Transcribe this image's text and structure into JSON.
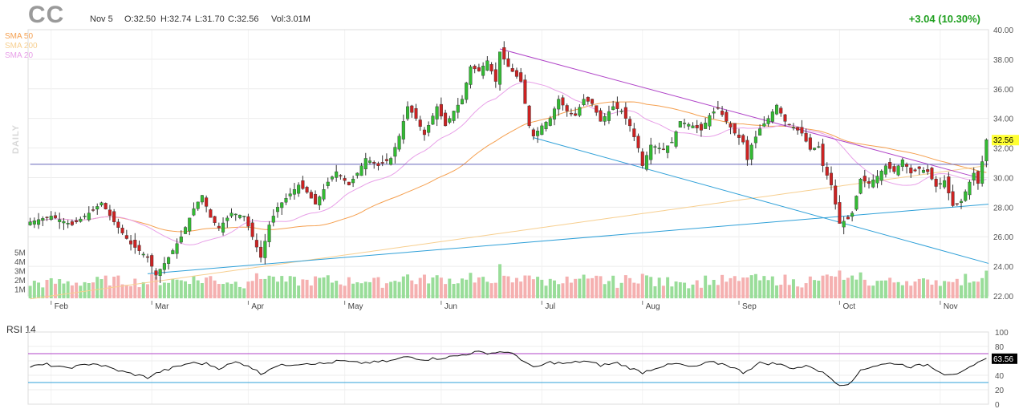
{
  "header": {
    "ticker": "CC",
    "date": "Nov 5",
    "open": "O:32.50",
    "high": "H:32.74",
    "low": "L:31.70",
    "close": "C:32.56",
    "volume": "Vol:3.01M",
    "change": "+3.04 (10.30%)",
    "side_label": "DAILY"
  },
  "legend": [
    {
      "name": "SMA 50",
      "color": "#f5a050"
    },
    {
      "name": "SMA 200",
      "color": "#f7cf90"
    },
    {
      "name": "SMA 20",
      "color": "#e8a0e8"
    }
  ],
  "colors": {
    "up": "#33bb33",
    "down": "#cc2222",
    "vol_up": "#99dd99",
    "vol_down": "#f5b0b0",
    "trend_purple": "#b044c8",
    "trend_blue": "#2fa0d8",
    "support": "#6666bb",
    "rsi_line": "#111111",
    "rsi_70": "#b044c8",
    "rsi_30": "#2fa0d8",
    "last_price_bg": "#ffff33"
  },
  "chart_data": [
    {
      "type": "candlestick",
      "title": "CC",
      "x_labels": [
        "Feb",
        "Mar",
        "Apr",
        "May",
        "Jun",
        "Jul",
        "Aug",
        "Sep",
        "Oct",
        "Nov"
      ],
      "y_ticks": [
        "40.00",
        "38.00",
        "36.00",
        "34.00",
        "32.00",
        "30.00",
        "28.00",
        "26.00",
        "24.00",
        "22.00"
      ],
      "ylim": [
        22,
        40
      ],
      "volume_ticks": [
        "5M",
        "4M",
        "3M",
        "2M",
        "1M"
      ],
      "volume_max": 5.5,
      "last_price": "32.56",
      "anchors": [
        [
          0,
          27.0
        ],
        [
          5,
          27.4
        ],
        [
          10,
          26.8
        ],
        [
          15,
          27.8
        ],
        [
          17,
          28.3
        ],
        [
          20,
          27.0
        ],
        [
          24,
          25.5
        ],
        [
          28,
          24.6
        ],
        [
          30,
          23.4
        ],
        [
          33,
          24.6
        ],
        [
          36,
          26.0
        ],
        [
          39,
          27.9
        ],
        [
          41,
          28.8
        ],
        [
          43,
          27.3
        ],
        [
          45,
          26.6
        ],
        [
          48,
          27.6
        ],
        [
          51,
          27.4
        ],
        [
          53,
          26.0
        ],
        [
          55,
          24.6
        ],
        [
          57,
          26.8
        ],
        [
          59,
          28.0
        ],
        [
          62,
          28.9
        ],
        [
          64,
          29.5
        ],
        [
          66,
          29.0
        ],
        [
          68,
          28.2
        ],
        [
          71,
          29.7
        ],
        [
          73,
          30.4
        ],
        [
          76,
          29.5
        ],
        [
          78,
          30.3
        ],
        [
          80,
          31.3
        ],
        [
          83,
          30.8
        ],
        [
          86,
          31.3
        ],
        [
          88,
          32.8
        ],
        [
          90,
          34.8
        ],
        [
          92,
          34.0
        ],
        [
          94,
          32.9
        ],
        [
          97,
          34.8
        ],
        [
          99,
          33.5
        ],
        [
          101,
          34.5
        ],
        [
          103,
          35.3
        ],
        [
          105,
          37.5
        ],
        [
          107,
          37.2
        ],
        [
          109,
          37.9
        ],
        [
          111,
          36.5
        ],
        [
          112,
          38.5
        ],
        [
          114,
          37.5
        ],
        [
          117,
          36.5
        ],
        [
          119,
          33.5
        ],
        [
          120,
          32.8
        ],
        [
          122,
          33.5
        ],
        [
          124,
          34.0
        ],
        [
          126,
          35.3
        ],
        [
          128,
          34.5
        ],
        [
          130,
          34.2
        ],
        [
          132,
          35.3
        ],
        [
          134,
          35.0
        ],
        [
          136,
          33.8
        ],
        [
          139,
          34.8
        ],
        [
          141,
          34.5
        ],
        [
          143,
          33.5
        ],
        [
          145,
          32.0
        ],
        [
          146,
          30.8
        ],
        [
          148,
          32.2
        ],
        [
          151,
          31.9
        ],
        [
          153,
          32.4
        ],
        [
          155,
          33.8
        ],
        [
          158,
          33.5
        ],
        [
          160,
          33.2
        ],
        [
          162,
          34.2
        ],
        [
          164,
          34.7
        ],
        [
          166,
          33.8
        ],
        [
          168,
          33.0
        ],
        [
          170,
          32.4
        ],
        [
          171,
          31.2
        ],
        [
          172,
          32.2
        ],
        [
          174,
          33.3
        ],
        [
          176,
          34.0
        ],
        [
          178,
          34.9
        ],
        [
          180,
          33.8
        ],
        [
          182,
          33.4
        ],
        [
          184,
          33.0
        ],
        [
          186,
          31.9
        ],
        [
          188,
          32.1
        ],
        [
          189,
          30.8
        ],
        [
          191,
          29.5
        ],
        [
          193,
          26.9
        ],
        [
          195,
          27.2
        ],
        [
          196,
          27.6
        ],
        [
          198,
          29.9
        ],
        [
          200,
          29.6
        ],
        [
          202,
          30.1
        ],
        [
          204,
          30.8
        ],
        [
          206,
          30.4
        ],
        [
          208,
          31.2
        ],
        [
          210,
          30.3
        ],
        [
          212,
          30.6
        ],
        [
          214,
          30.4
        ],
        [
          216,
          29.4
        ],
        [
          218,
          29.8
        ],
        [
          220,
          28.1
        ],
        [
          222,
          28.4
        ],
        [
          224,
          29.7
        ],
        [
          225,
          30.3
        ],
        [
          226,
          29.6
        ],
        [
          228,
          32.56
        ]
      ],
      "trendlines": [
        {
          "name": "upper-resistance",
          "from": [
            112,
            38.7
          ],
          "to": [
            226,
            30.0
          ]
        },
        {
          "name": "lower-channel",
          "from": [
            120,
            32.7
          ],
          "to": [
            228,
            24.2
          ]
        },
        {
          "name": "rising-support",
          "from": [
            28,
            23.5
          ],
          "to": [
            228,
            28.2
          ]
        },
        {
          "name": "horizontal-support",
          "from": [
            0,
            30.9
          ],
          "to": [
            228,
            30.9
          ]
        }
      ]
    },
    {
      "type": "line",
      "title": "RSI 14",
      "y_ticks": [
        "100",
        "80",
        "60",
        "40",
        "20",
        "0"
      ],
      "ylim": [
        0,
        100
      ],
      "reference_lines": [
        70,
        30
      ],
      "last_value": "63.56",
      "anchors": [
        [
          0,
          52
        ],
        [
          4,
          55
        ],
        [
          8,
          50
        ],
        [
          12,
          53
        ],
        [
          15,
          57
        ],
        [
          18,
          52
        ],
        [
          22,
          45
        ],
        [
          25,
          41
        ],
        [
          28,
          37
        ],
        [
          31,
          45
        ],
        [
          34,
          50
        ],
        [
          38,
          57
        ],
        [
          42,
          56
        ],
        [
          45,
          50
        ],
        [
          49,
          58
        ],
        [
          52,
          54
        ],
        [
          55,
          42
        ],
        [
          58,
          52
        ],
        [
          62,
          55
        ],
        [
          66,
          57
        ],
        [
          70,
          56
        ],
        [
          74,
          60
        ],
        [
          78,
          57
        ],
        [
          82,
          58
        ],
        [
          86,
          60
        ],
        [
          90,
          66
        ],
        [
          94,
          62
        ],
        [
          98,
          64
        ],
        [
          102,
          67
        ],
        [
          106,
          72
        ],
        [
          110,
          71
        ],
        [
          113,
          73
        ],
        [
          116,
          67
        ],
        [
          120,
          50
        ],
        [
          124,
          58
        ],
        [
          128,
          56
        ],
        [
          132,
          60
        ],
        [
          136,
          54
        ],
        [
          140,
          57
        ],
        [
          144,
          48
        ],
        [
          146,
          44
        ],
        [
          150,
          52
        ],
        [
          154,
          56
        ],
        [
          158,
          51
        ],
        [
          162,
          58
        ],
        [
          166,
          55
        ],
        [
          170,
          44
        ],
        [
          174,
          57
        ],
        [
          178,
          56
        ],
        [
          182,
          50
        ],
        [
          186,
          53
        ],
        [
          190,
          40
        ],
        [
          193,
          27
        ],
        [
          196,
          30
        ],
        [
          198,
          48
        ],
        [
          202,
          54
        ],
        [
          206,
          57
        ],
        [
          210,
          52
        ],
        [
          214,
          55
        ],
        [
          218,
          42
        ],
        [
          222,
          43
        ],
        [
          225,
          53
        ],
        [
          228,
          63.56
        ]
      ]
    }
  ]
}
